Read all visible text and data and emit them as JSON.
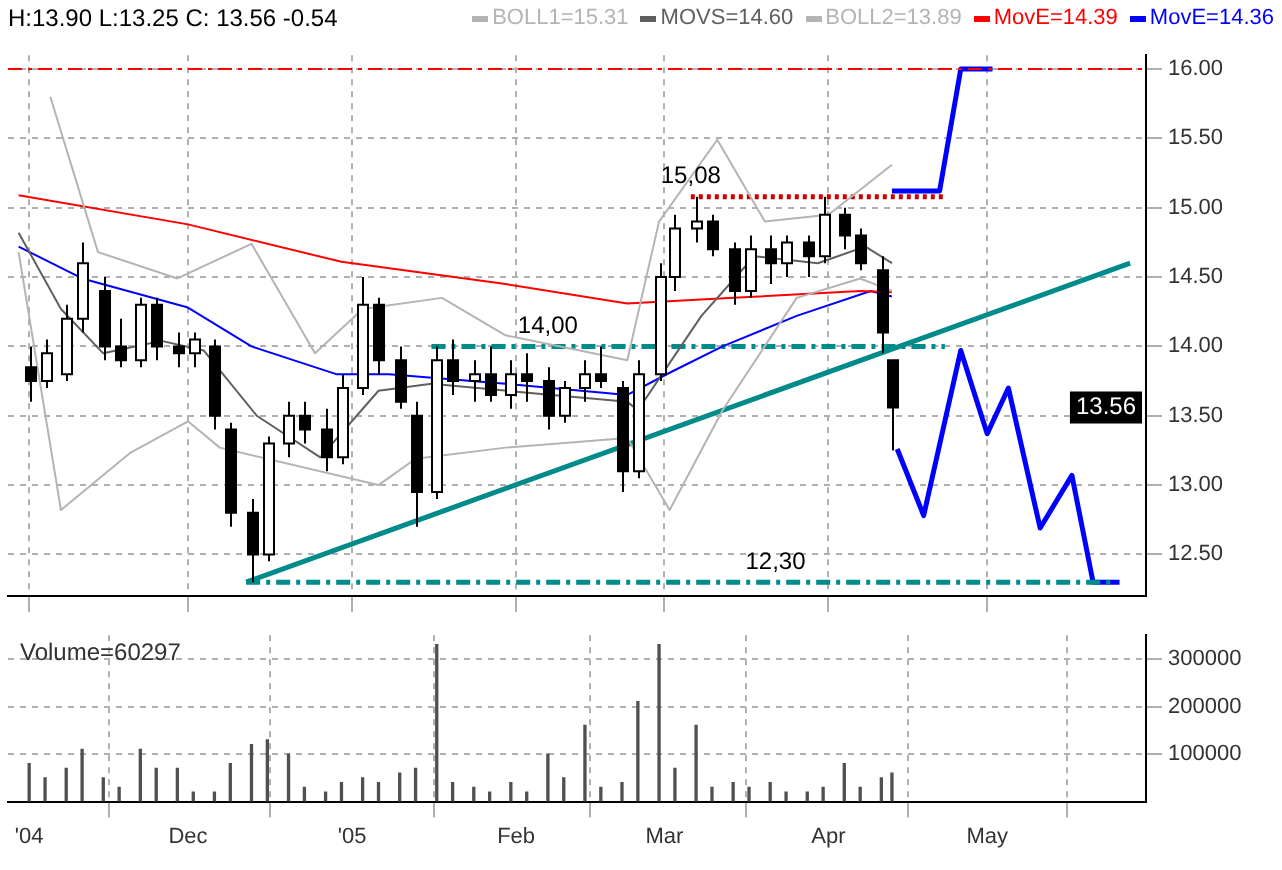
{
  "chart_data": [
    {
      "type": "candlestick",
      "title": "H:13.90 L:13.25 C: 13.56 -0.54",
      "legend": "top right",
      "marker": "none",
      "grid": true,
      "tick_labels": "y",
      "x": [
        "2004-11-01",
        "2004-11-04",
        "2004-11-08",
        "2004-11-11",
        "2004-11-15",
        "2004-11-18",
        "2004-11-22",
        "2004-11-25",
        "2004-11-29",
        "2004-12-02",
        "2004-12-06",
        "2004-12-09",
        "2004-12-13",
        "2004-12-16",
        "2004-12-20",
        "2004-12-23",
        "2004-12-27",
        "2004-12-30",
        "2005-01-03",
        "2005-01-06",
        "2005-01-10",
        "2005-01-13",
        "2005-01-17",
        "2005-01-20",
        "2005-01-24",
        "2005-01-27",
        "2005-01-31",
        "2005-02-03",
        "2005-02-07",
        "2005-02-10",
        "2005-02-14",
        "2005-02-17",
        "2005-02-21",
        "2005-02-24",
        "2005-02-28",
        "2005-03-03",
        "2005-03-07",
        "2005-03-10",
        "2005-03-14",
        "2005-03-17",
        "2005-03-21",
        "2005-03-24",
        "2005-03-28",
        "2005-03-31",
        "2005-04-04",
        "2005-04-07",
        "2005-04-11",
        "2005-04-13"
      ],
      "ohlc": [
        [
          13.85,
          14.0,
          13.6,
          13.75
        ],
        [
          13.75,
          14.05,
          13.7,
          13.95
        ],
        [
          13.8,
          14.3,
          13.75,
          14.2
        ],
        [
          14.2,
          14.75,
          14.1,
          14.6
        ],
        [
          14.4,
          14.5,
          13.9,
          14.0
        ],
        [
          14.0,
          14.2,
          13.85,
          13.9
        ],
        [
          13.9,
          14.35,
          13.85,
          14.3
        ],
        [
          14.3,
          14.35,
          13.9,
          14.0
        ],
        [
          14.0,
          14.1,
          13.85,
          13.95
        ],
        [
          13.95,
          14.1,
          13.85,
          14.05
        ],
        [
          14.0,
          14.05,
          13.4,
          13.5
        ],
        [
          13.4,
          13.45,
          12.7,
          12.8
        ],
        [
          12.8,
          12.9,
          12.3,
          12.5
        ],
        [
          12.5,
          13.35,
          12.45,
          13.3
        ],
        [
          13.3,
          13.6,
          13.2,
          13.5
        ],
        [
          13.5,
          13.6,
          13.3,
          13.4
        ],
        [
          13.4,
          13.55,
          13.1,
          13.2
        ],
        [
          13.2,
          13.8,
          13.15,
          13.7
        ],
        [
          13.7,
          14.5,
          13.65,
          14.3
        ],
        [
          14.3,
          14.35,
          13.8,
          13.9
        ],
        [
          13.9,
          14.0,
          13.55,
          13.6
        ],
        [
          13.5,
          13.6,
          12.7,
          12.95
        ],
        [
          12.95,
          14.0,
          12.9,
          13.9
        ],
        [
          13.9,
          14.05,
          13.65,
          13.75
        ],
        [
          13.75,
          13.9,
          13.6,
          13.8
        ],
        [
          13.8,
          14.0,
          13.6,
          13.65
        ],
        [
          13.65,
          13.9,
          13.55,
          13.8
        ],
        [
          13.8,
          13.95,
          13.6,
          13.75
        ],
        [
          13.75,
          13.85,
          13.4,
          13.5
        ],
        [
          13.5,
          13.75,
          13.45,
          13.7
        ],
        [
          13.7,
          13.9,
          13.6,
          13.8
        ],
        [
          13.8,
          14.0,
          13.7,
          13.75
        ],
        [
          13.7,
          13.75,
          12.95,
          13.1
        ],
        [
          13.1,
          13.9,
          13.05,
          13.8
        ],
        [
          13.8,
          14.6,
          13.75,
          14.5
        ],
        [
          14.5,
          14.95,
          14.4,
          14.85
        ],
        [
          14.85,
          15.08,
          14.75,
          14.9
        ],
        [
          14.9,
          14.95,
          14.65,
          14.7
        ],
        [
          14.7,
          14.75,
          14.3,
          14.4
        ],
        [
          14.4,
          14.8,
          14.35,
          14.7
        ],
        [
          14.7,
          14.8,
          14.45,
          14.6
        ],
        [
          14.6,
          14.8,
          14.5,
          14.75
        ],
        [
          14.75,
          14.8,
          14.5,
          14.65
        ],
        [
          14.65,
          15.08,
          14.6,
          14.95
        ],
        [
          14.95,
          15.0,
          14.7,
          14.8
        ],
        [
          14.8,
          14.85,
          14.55,
          14.6
        ],
        [
          14.55,
          14.65,
          13.95,
          14.1
        ],
        [
          13.9,
          13.9,
          13.25,
          13.56
        ]
      ],
      "series": [
        {
          "name": "BOLL1=15.31",
          "type": "line",
          "color": "#b4b4b4",
          "x": [
            "2004-11-05",
            "2004-11-14",
            "2004-11-29",
            "2004-12-13",
            "2004-12-25",
            "2005-01-03",
            "2005-01-18",
            "2005-01-30",
            "2005-02-22",
            "2005-02-28",
            "2005-03-11",
            "2005-03-20",
            "2005-04-01",
            "2005-04-13"
          ],
          "values": [
            15.8,
            14.68,
            14.49,
            14.74,
            13.95,
            14.27,
            14.35,
            14.08,
            13.9,
            14.9,
            15.49,
            14.9,
            14.95,
            15.31
          ]
        },
        {
          "name": "MOVS=14.60",
          "type": "line",
          "color": "#606060",
          "x": [
            "2004-10-30",
            "2004-11-07",
            "2004-11-15",
            "2004-11-26",
            "2004-12-04",
            "2004-12-14",
            "2004-12-26",
            "2005-01-06",
            "2005-01-16",
            "2005-02-22",
            "2005-02-24",
            "2005-03-08",
            "2005-03-18",
            "2005-03-30",
            "2005-04-08",
            "2005-04-13"
          ],
          "values": [
            14.82,
            14.27,
            13.95,
            14.04,
            13.97,
            13.5,
            13.2,
            13.68,
            13.73,
            13.6,
            13.54,
            14.22,
            14.65,
            14.6,
            14.72,
            14.6
          ]
        },
        {
          "name": "BOLL2=13.89",
          "type": "line",
          "color": "#b4b4b4",
          "x": [
            "2004-10-30",
            "2004-11-07",
            "2004-11-20",
            "2004-12-01",
            "2004-12-07",
            "2005-01-06",
            "2005-01-13",
            "2005-01-30",
            "2005-02-22",
            "2005-03-02",
            "2005-03-12",
            "2005-03-26",
            "2005-04-07",
            "2005-04-13"
          ],
          "values": [
            14.68,
            12.82,
            13.23,
            13.46,
            13.27,
            13.0,
            13.19,
            13.27,
            13.34,
            12.82,
            13.54,
            14.35,
            14.49,
            14.4
          ]
        },
        {
          "name": "MovE=14.39",
          "type": "line",
          "color": "#ff0000",
          "x": [
            "2004-10-30",
            "2004-12-01",
            "2004-12-30",
            "2005-01-30",
            "2005-02-22",
            "2005-03-14",
            "2005-04-07",
            "2005-04-13"
          ],
          "values": [
            15.09,
            14.88,
            14.61,
            14.45,
            14.31,
            14.35,
            14.4,
            14.39
          ]
        },
        {
          "name": "MovE=14.36",
          "type": "line",
          "color": "#0000ff",
          "x": [
            "2004-10-30",
            "2004-11-11",
            "2004-12-01",
            "2004-12-13",
            "2004-12-29",
            "2005-01-08",
            "2005-01-30",
            "2005-02-22",
            "2005-03-02",
            "2005-03-12",
            "2005-03-26",
            "2005-04-09",
            "2005-04-13"
          ],
          "values": [
            14.72,
            14.49,
            14.28,
            14.0,
            13.8,
            13.8,
            13.73,
            13.65,
            13.81,
            14.0,
            14.22,
            14.4,
            14.36
          ]
        },
        {
          "type": "line",
          "color": "#008b8b",
          "line_style": "dashed",
          "x": [
            "2005-01-16",
            "2005-04-23"
          ],
          "values": [
            14.0,
            14.0
          ]
        },
        {
          "type": "line",
          "color": "#cc0000",
          "line_style": "dotted",
          "x": [
            "2005-03-06",
            "2005-04-23"
          ],
          "values": [
            15.08,
            15.08
          ]
        },
        {
          "type": "line",
          "color": "#008b8b",
          "line_style": "dashed",
          "x": [
            "2004-12-12",
            "2005-05-25"
          ],
          "values": [
            12.3,
            12.3
          ]
        },
        {
          "type": "line",
          "color": "#008b8b",
          "x": [
            "2004-12-12",
            "2005-05-28"
          ],
          "values": [
            12.3,
            14.6
          ]
        },
        {
          "type": "line",
          "color": "#0000ff",
          "x": [
            "2005-04-14",
            "2005-04-19",
            "2005-04-26",
            "2005-05-01",
            "2005-05-05",
            "2005-05-11",
            "2005-05-17",
            "2005-05-21",
            "2005-05-26"
          ],
          "values": [
            13.26,
            12.78,
            13.97,
            13.37,
            13.7,
            12.69,
            13.07,
            12.3,
            12.3
          ]
        },
        {
          "type": "line",
          "color": "#0000ff",
          "x": [
            "2005-04-13",
            "2005-04-22",
            "2005-04-26",
            "2005-05-02"
          ],
          "values": [
            15.12,
            15.12,
            16.0,
            16.0
          ]
        }
      ],
      "ref_lines": [
        {
          "axis": "y",
          "value": 16.0,
          "color": "#ff0000",
          "line_style": "dashed"
        }
      ],
      "annotations": [
        {
          "text": "14,00",
          "x": "2005-02-07",
          "y": 14.0
        },
        {
          "text": "15,08",
          "x": "2005-03-06",
          "y": 15.08
        },
        {
          "text": "12,30",
          "x": "2005-03-22",
          "y": 12.3
        },
        {
          "text": "13.56",
          "y": 13.56
        }
      ],
      "xlim": [
        "2004-10-28",
        "2005-05-31"
      ],
      "xticks": [
        {
          "value": "2004-11-01",
          "label": null
        },
        {
          "value": "2004-12-01",
          "label": null
        },
        {
          "value": "2005-01-01",
          "label": null
        },
        {
          "value": "2005-02-01",
          "label": null
        },
        {
          "value": "2005-03-01",
          "label": null
        },
        {
          "value": "2005-04-01",
          "label": null
        },
        {
          "value": "2005-05-01",
          "label": null
        }
      ],
      "ylim": [
        12.2,
        16.1
      ],
      "yticks": [
        {
          "value": 12.5,
          "label": "12.50"
        },
        {
          "value": 13,
          "label": "13.00"
        },
        {
          "value": 13.5,
          "label": "13.50"
        },
        {
          "value": 14,
          "label": "14.00"
        },
        {
          "value": 14.5,
          "label": "14.50"
        },
        {
          "value": 15,
          "label": "15.00"
        },
        {
          "value": 15.5,
          "label": "15.50"
        },
        {
          "value": 16,
          "label": "16.00"
        }
      ]
    },
    {
      "type": "bar",
      "color": "#505050",
      "grid": true,
      "annotations": [
        "Volume=60297"
      ],
      "x": [
        "2004-11-01",
        "2004-11-04",
        "2004-11-08",
        "2004-11-11",
        "2004-11-15",
        "2004-11-18",
        "2004-11-22",
        "2004-11-25",
        "2004-11-29",
        "2004-12-02",
        "2004-12-06",
        "2004-12-09",
        "2004-12-13",
        "2004-12-16",
        "2004-12-20",
        "2004-12-23",
        "2004-12-27",
        "2004-12-30",
        "2005-01-03",
        "2005-01-06",
        "2005-01-10",
        "2005-01-13",
        "2005-01-17",
        "2005-01-20",
        "2005-01-24",
        "2005-01-27",
        "2005-01-31",
        "2005-02-03",
        "2005-02-07",
        "2005-02-10",
        "2005-02-14",
        "2005-02-17",
        "2005-02-21",
        "2005-02-24",
        "2005-02-28",
        "2005-03-03",
        "2005-03-07",
        "2005-03-10",
        "2005-03-14",
        "2005-03-17",
        "2005-03-21",
        "2005-03-24",
        "2005-03-28",
        "2005-03-31",
        "2005-04-04",
        "2005-04-07",
        "2005-04-11",
        "2005-04-13"
      ],
      "values": [
        80000,
        50000,
        70000,
        110000,
        50000,
        30000,
        110000,
        70000,
        70000,
        20000,
        20000,
        80000,
        120000,
        130000,
        100000,
        30000,
        20000,
        40000,
        50000,
        40000,
        60000,
        70000,
        330000,
        40000,
        30000,
        20000,
        40000,
        20000,
        100000,
        50000,
        160000,
        30000,
        40000,
        210000,
        330000,
        70000,
        160000,
        30000,
        40000,
        30000,
        40000,
        20000,
        20000,
        30000,
        80000,
        30000,
        50000,
        60000
      ],
      "xlim": [
        "2004-10-28",
        "2005-05-31"
      ],
      "xticks": [
        {
          "value": "2004-11-01",
          "label": "'04"
        },
        {
          "value": "2004-12-01",
          "label": "Dec"
        },
        {
          "value": "2005-01-01",
          "label": "'05"
        },
        {
          "value": "2005-02-01",
          "label": "Feb"
        },
        {
          "value": "2005-03-01",
          "label": "Mar"
        },
        {
          "value": "2005-04-01",
          "label": "Apr"
        },
        {
          "value": "2005-05-01",
          "label": "May"
        }
      ],
      "ylim": [
        0,
        350000
      ],
      "yticks": [
        100000,
        200000,
        300000
      ]
    }
  ]
}
